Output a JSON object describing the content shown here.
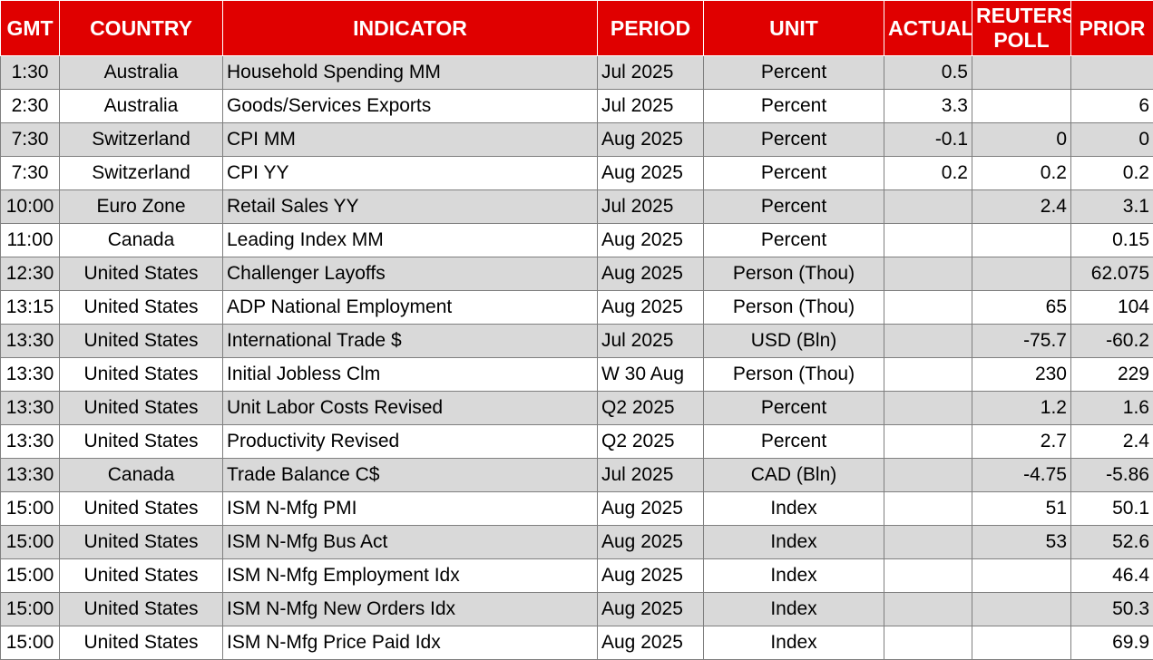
{
  "colors": {
    "header_bg": "#e00000",
    "header_text": "#ffffff",
    "row_shaded": "#d9d9d9",
    "row_plain": "#ffffff"
  },
  "headers": {
    "gmt": "GMT",
    "country": "COUNTRY",
    "indicator": "INDICATOR",
    "period": "PERIOD",
    "unit": "UNIT",
    "actual": "ACTUAL",
    "poll": "REUTERS POLL",
    "prior": "PRIOR"
  },
  "rows": [
    {
      "gmt": "1:30",
      "country": "Australia",
      "indicator": "Household Spending MM",
      "period": "Jul 2025",
      "unit": "Percent",
      "actual": "0.5",
      "poll": "",
      "prior": ""
    },
    {
      "gmt": "2:30",
      "country": "Australia",
      "indicator": "Goods/Services Exports",
      "period": "Jul 2025",
      "unit": "Percent",
      "actual": "3.3",
      "poll": "",
      "prior": "6"
    },
    {
      "gmt": "7:30",
      "country": "Switzerland",
      "indicator": "CPI MM",
      "period": "Aug 2025",
      "unit": "Percent",
      "actual": "-0.1",
      "poll": "0",
      "prior": "0"
    },
    {
      "gmt": "7:30",
      "country": "Switzerland",
      "indicator": "CPI YY",
      "period": "Aug 2025",
      "unit": "Percent",
      "actual": "0.2",
      "poll": "0.2",
      "prior": "0.2"
    },
    {
      "gmt": "10:00",
      "country": "Euro Zone",
      "indicator": "Retail Sales YY",
      "period": "Jul 2025",
      "unit": "Percent",
      "actual": "",
      "poll": "2.4",
      "prior": "3.1"
    },
    {
      "gmt": "11:00",
      "country": "Canada",
      "indicator": "Leading Index MM",
      "period": "Aug 2025",
      "unit": "Percent",
      "actual": "",
      "poll": "",
      "prior": "0.15"
    },
    {
      "gmt": "12:30",
      "country": "United States",
      "indicator": "Challenger Layoffs",
      "period": "Aug 2025",
      "unit": "Person (Thou)",
      "actual": "",
      "poll": "",
      "prior": "62.075"
    },
    {
      "gmt": "13:15",
      "country": "United States",
      "indicator": "ADP National Employment",
      "period": "Aug 2025",
      "unit": "Person (Thou)",
      "actual": "",
      "poll": "65",
      "prior": "104"
    },
    {
      "gmt": "13:30",
      "country": "United States",
      "indicator": "International Trade $",
      "period": "Jul 2025",
      "unit": "USD (Bln)",
      "actual": "",
      "poll": "-75.7",
      "prior": "-60.2"
    },
    {
      "gmt": "13:30",
      "country": "United States",
      "indicator": "Initial Jobless Clm",
      "period": "W 30 Aug",
      "unit": "Person (Thou)",
      "actual": "",
      "poll": "230",
      "prior": "229"
    },
    {
      "gmt": "13:30",
      "country": "United States",
      "indicator": "Unit Labor Costs Revised",
      "period": "Q2 2025",
      "unit": "Percent",
      "actual": "",
      "poll": "1.2",
      "prior": "1.6"
    },
    {
      "gmt": "13:30",
      "country": "United States",
      "indicator": "Productivity Revised",
      "period": "Q2 2025",
      "unit": "Percent",
      "actual": "",
      "poll": "2.7",
      "prior": "2.4"
    },
    {
      "gmt": "13:30",
      "country": "Canada",
      "indicator": "Trade Balance C$",
      "period": "Jul 2025",
      "unit": "CAD (Bln)",
      "actual": "",
      "poll": "-4.75",
      "prior": "-5.86"
    },
    {
      "gmt": "15:00",
      "country": "United States",
      "indicator": "ISM N-Mfg PMI",
      "period": "Aug 2025",
      "unit": "Index",
      "actual": "",
      "poll": "51",
      "prior": "50.1"
    },
    {
      "gmt": "15:00",
      "country": "United States",
      "indicator": "ISM N-Mfg Bus Act",
      "period": "Aug 2025",
      "unit": "Index",
      "actual": "",
      "poll": "53",
      "prior": "52.6"
    },
    {
      "gmt": "15:00",
      "country": "United States",
      "indicator": "ISM N-Mfg Employment Idx",
      "period": "Aug 2025",
      "unit": "Index",
      "actual": "",
      "poll": "",
      "prior": "46.4"
    },
    {
      "gmt": "15:00",
      "country": "United States",
      "indicator": "ISM N-Mfg New Orders Idx",
      "period": "Aug 2025",
      "unit": "Index",
      "actual": "",
      "poll": "",
      "prior": "50.3"
    },
    {
      "gmt": "15:00",
      "country": "United States",
      "indicator": "ISM N-Mfg Price Paid Idx",
      "period": "Aug 2025",
      "unit": "Index",
      "actual": "",
      "poll": "",
      "prior": "69.9"
    }
  ]
}
